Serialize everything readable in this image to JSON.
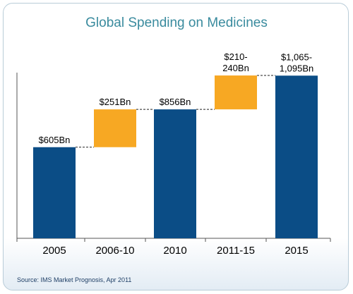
{
  "chart_data": {
    "type": "bar",
    "subtype": "waterfall",
    "title": "Global Spending on Medicines",
    "categories": [
      "2005",
      "2006-10",
      "2010",
      "2011-15",
      "2015"
    ],
    "bars": [
      {
        "category": "2005",
        "kind": "total",
        "base": 0,
        "value": 605,
        "label": [
          "$605Bn"
        ]
      },
      {
        "category": "2006-10",
        "kind": "increment",
        "base": 605,
        "value": 251,
        "label": [
          "$251Bn"
        ]
      },
      {
        "category": "2010",
        "kind": "total",
        "base": 0,
        "value": 856,
        "label": [
          "$856Bn"
        ]
      },
      {
        "category": "2011-15",
        "kind": "increment",
        "base": 856,
        "value": 225,
        "label": [
          "$210-",
          "240Bn"
        ]
      },
      {
        "category": "2015",
        "kind": "total",
        "base": 0,
        "value": 1080,
        "label": [
          "$1,065-",
          "1,095Bn"
        ]
      }
    ],
    "colors": {
      "total": "#0b4d86",
      "increment": "#f7a823",
      "title": "#3a8b9e"
    },
    "ylim": [
      0,
      1100
    ],
    "grid": false,
    "connectors": "dashed"
  },
  "source_note": "Source: IMS Market Prognosis, Apr 2011"
}
